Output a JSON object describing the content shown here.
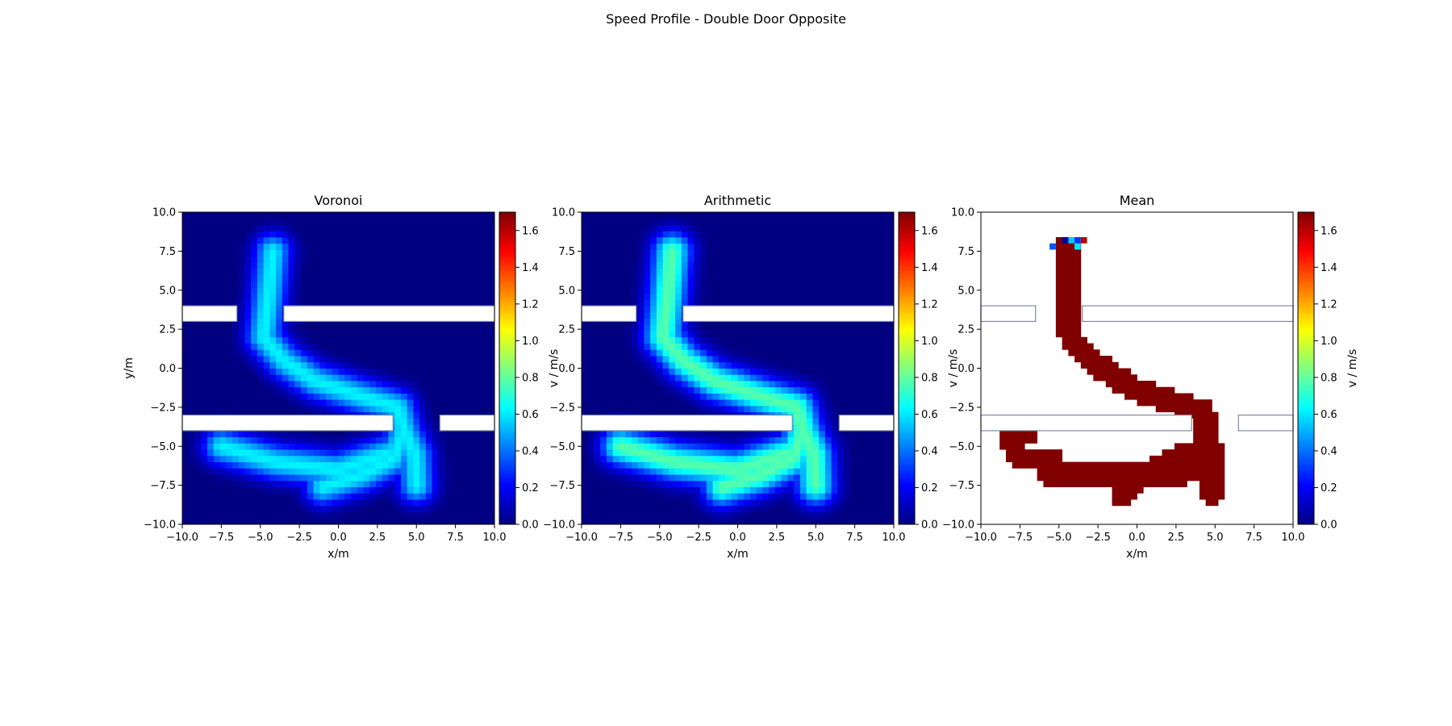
{
  "figure": {
    "title": "Speed Profile - Double Door Opposite"
  },
  "chart_data": [
    {
      "type": "heatmap",
      "title": "Voronoi",
      "xlabel": "x/m",
      "ylabel": "y/m",
      "xlim": [
        -10,
        10
      ],
      "ylim": [
        -10,
        10
      ],
      "xticks": [
        "−10.0",
        "−7.5",
        "−5.0",
        "−2.5",
        "0.0",
        "2.5",
        "5.0",
        "7.5",
        "10.0"
      ],
      "yticks": [
        "−10.0",
        "−7.5",
        "−5.0",
        "−2.5",
        "0.0",
        "2.5",
        "5.0",
        "7.5",
        "10.0"
      ],
      "colorbar": {
        "label": "v / m/s",
        "range": [
          0,
          1.7
        ],
        "ticks": [
          "0.0",
          "0.2",
          "0.4",
          "0.6",
          "0.8",
          "1.0",
          "1.2",
          "1.4",
          "1.6"
        ]
      },
      "colormap": "jet",
      "grid_resolution_m": 0.4,
      "background_value": 0.0,
      "path_peak_value": 0.62,
      "path_halo_width_m": 0.8,
      "trajectories": [
        [
          [
            -4.2,
            7.5
          ],
          [
            -4.5,
            4.5
          ],
          [
            -4.8,
            2.0
          ],
          [
            -3.5,
            0.5
          ],
          [
            -1.5,
            -0.8
          ],
          [
            1.5,
            -1.8
          ],
          [
            3.8,
            -2.5
          ],
          [
            4.2,
            -4.0
          ],
          [
            3.5,
            -5.8
          ],
          [
            1.5,
            -6.8
          ],
          [
            -1.0,
            -7.6
          ]
        ],
        [
          [
            4.2,
            -4.0
          ],
          [
            4.9,
            -5.5
          ],
          [
            5.0,
            -7.5
          ]
        ],
        [
          [
            3.0,
            -5.5
          ],
          [
            0.0,
            -6.5
          ],
          [
            -4.0,
            -6.0
          ],
          [
            -7.5,
            -5.0
          ]
        ]
      ],
      "walls": [
        {
          "x": [
            -10.0,
            -6.5
          ],
          "y": [
            3.0,
            4.0
          ]
        },
        {
          "x": [
            -3.5,
            10.0
          ],
          "y": [
            3.0,
            4.0
          ]
        },
        {
          "x": [
            -10.0,
            3.5
          ],
          "y": [
            -4.0,
            -3.0
          ]
        },
        {
          "x": [
            6.5,
            10.0
          ],
          "y": [
            -4.0,
            -3.0
          ]
        }
      ]
    },
    {
      "type": "heatmap",
      "title": "Arithmetic",
      "xlabel": "x/m",
      "ylabel": "",
      "xlim": [
        -10,
        10
      ],
      "ylim": [
        -10,
        10
      ],
      "xticks": [
        "−10.0",
        "−7.5",
        "−5.0",
        "−2.5",
        "0.0",
        "2.5",
        "5.0",
        "7.5",
        "10.0"
      ],
      "yticks": [
        "−10.0",
        "−7.5",
        "−5.0",
        "−2.5",
        "0.0",
        "2.5",
        "5.0",
        "7.5",
        "10.0"
      ],
      "colorbar": {
        "label": "v / m/s",
        "range": [
          0,
          1.7
        ],
        "ticks": [
          "0.0",
          "0.2",
          "0.4",
          "0.6",
          "0.8",
          "1.0",
          "1.2",
          "1.4",
          "1.6"
        ]
      },
      "colormap": "jet",
      "grid_resolution_m": 0.4,
      "background_value": 0.0,
      "path_peak_value": 0.78,
      "path_halo_width_m": 0.85,
      "trajectories": [
        [
          [
            -4.2,
            7.5
          ],
          [
            -4.5,
            4.5
          ],
          [
            -4.8,
            2.0
          ],
          [
            -3.5,
            0.5
          ],
          [
            -1.5,
            -0.8
          ],
          [
            1.5,
            -1.8
          ],
          [
            3.8,
            -2.5
          ],
          [
            4.2,
            -4.0
          ],
          [
            3.5,
            -5.8
          ],
          [
            1.5,
            -6.8
          ],
          [
            -1.0,
            -7.6
          ]
        ],
        [
          [
            4.2,
            -4.0
          ],
          [
            4.9,
            -5.5
          ],
          [
            5.0,
            -7.5
          ]
        ],
        [
          [
            3.0,
            -5.5
          ],
          [
            0.0,
            -6.5
          ],
          [
            -4.0,
            -6.0
          ],
          [
            -7.5,
            -5.0
          ]
        ]
      ],
      "walls": [
        {
          "x": [
            -10.0,
            -6.5
          ],
          "y": [
            3.0,
            4.0
          ]
        },
        {
          "x": [
            -3.5,
            10.0
          ],
          "y": [
            3.0,
            4.0
          ]
        },
        {
          "x": [
            -10.0,
            3.5
          ],
          "y": [
            -4.0,
            -3.0
          ]
        },
        {
          "x": [
            6.5,
            10.0
          ],
          "y": [
            -4.0,
            -3.0
          ]
        }
      ]
    },
    {
      "type": "heatmap",
      "title": "Mean",
      "xlabel": "x/m",
      "ylabel": "",
      "xlim": [
        -10,
        10
      ],
      "ylim": [
        -10,
        10
      ],
      "xticks": [
        "−10.0",
        "−7.5",
        "−5.0",
        "−2.5",
        "0.0",
        "2.5",
        "5.0",
        "7.5",
        "10.0"
      ],
      "yticks": [
        "−10.0",
        "−7.5",
        "−5.0",
        "−2.5",
        "0.0",
        "2.5",
        "5.0",
        "7.5",
        "10.0"
      ],
      "colorbar": {
        "label": "v / m/s",
        "range": [
          0,
          1.7
        ],
        "ticks": [
          "0.0",
          "0.2",
          "0.4",
          "0.6",
          "0.8",
          "1.0",
          "1.2",
          "1.4",
          "1.6"
        ]
      },
      "colormap": "jet",
      "grid_resolution_m": 0.4,
      "background_value": null,
      "path_peak_value": 1.7,
      "path_halo_width_m": 0.85,
      "trajectories": [
        [
          [
            -4.5,
            7.8
          ],
          [
            -4.5,
            4.5
          ],
          [
            -4.2,
            1.8
          ],
          [
            -2.5,
            0.2
          ],
          [
            -0.5,
            -1.2
          ],
          [
            2.0,
            -2.0
          ],
          [
            4.2,
            -2.8
          ],
          [
            4.5,
            -4.5
          ],
          [
            4.0,
            -6.5
          ],
          [
            2.0,
            -6.8
          ],
          [
            -5.5,
            -6.9
          ]
        ],
        [
          [
            4.2,
            -4.0
          ],
          [
            5.0,
            -5.5
          ],
          [
            4.8,
            -8.0
          ]
        ],
        [
          [
            3.0,
            -5.5
          ],
          [
            0.0,
            -7.2
          ],
          [
            -1.0,
            -8.0
          ]
        ],
        [
          [
            -5.5,
            -5.8
          ],
          [
            -7.5,
            -5.8
          ],
          [
            -8.2,
            -4.5
          ],
          [
            -7.0,
            -4.2
          ]
        ]
      ],
      "extra_cells": [
        {
          "x": -4.2,
          "y": 8.2,
          "v": 0.55
        },
        {
          "x": -4.6,
          "y": 8.2,
          "v": 0.05
        },
        {
          "x": -3.8,
          "y": 8.2,
          "v": 0.3
        },
        {
          "x": -5.4,
          "y": 7.8,
          "v": 0.35
        },
        {
          "x": -3.4,
          "y": 8.2,
          "v": 1.6
        },
        {
          "x": -3.8,
          "y": 7.8,
          "v": 0.6
        }
      ],
      "walls": [
        {
          "x": [
            -10.0,
            -6.5
          ],
          "y": [
            3.0,
            4.0
          ]
        },
        {
          "x": [
            -3.5,
            10.0
          ],
          "y": [
            3.0,
            4.0
          ]
        },
        {
          "x": [
            -10.0,
            3.5
          ],
          "y": [
            -4.0,
            -3.0
          ]
        },
        {
          "x": [
            6.5,
            10.0
          ],
          "y": [
            -4.0,
            -3.0
          ]
        }
      ]
    }
  ]
}
